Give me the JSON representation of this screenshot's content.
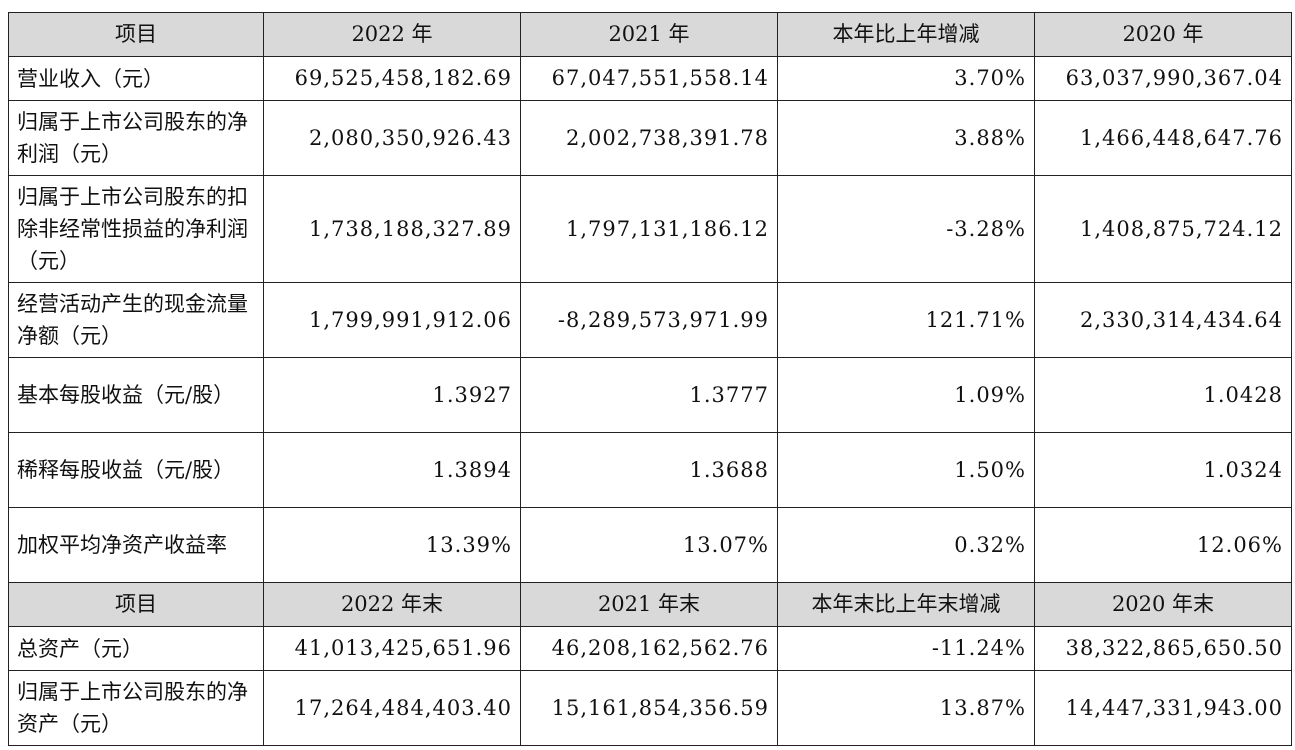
{
  "header_1": [
    "项目",
    "2022 年",
    "2021 年",
    "本年比上年增减",
    "2020 年"
  ],
  "rows_1": [
    {
      "label": "营业收入（元）",
      "v2022": "69,525,458,182.69",
      "v2021": "67,047,551,558.14",
      "change": "3.70%",
      "v2020": "63,037,990,367.04"
    },
    {
      "label": "归属于上市公司股东的净利润（元）",
      "v2022": "2,080,350,926.43",
      "v2021": "2,002,738,391.78",
      "change": "3.88%",
      "v2020": "1,466,448,647.76"
    },
    {
      "label": "归属于上市公司股东的扣除非经常性损益的净利润（元）",
      "v2022": "1,738,188,327.89",
      "v2021": "1,797,131,186.12",
      "change": "-3.28%",
      "v2020": "1,408,875,724.12"
    },
    {
      "label": "经营活动产生的现金流量净额（元）",
      "v2022": "1,799,991,912.06",
      "v2021": "-8,289,573,971.99",
      "change": "121.71%",
      "v2020": "2,330,314,434.64"
    },
    {
      "label": "基本每股收益（元/股）",
      "v2022": "1.3927",
      "v2021": "1.3777",
      "change": "1.09%",
      "v2020": "1.0428"
    },
    {
      "label": "稀释每股收益（元/股）",
      "v2022": "1.3894",
      "v2021": "1.3688",
      "change": "1.50%",
      "v2020": "1.0324"
    },
    {
      "label": "加权平均净资产收益率",
      "v2022": "13.39%",
      "v2021": "13.07%",
      "change": "0.32%",
      "v2020": "12.06%"
    }
  ],
  "header_2": [
    "项目",
    "2022 年末",
    "2021 年末",
    "本年末比上年末增减",
    "2020 年末"
  ],
  "rows_2": [
    {
      "label": "总资产（元）",
      "v2022": "41,013,425,651.96",
      "v2021": "46,208,162,562.76",
      "change": "-11.24%",
      "v2020": "38,322,865,650.50"
    },
    {
      "label": "归属于上市公司股东的净资产（元）",
      "v2022": "17,264,484,403.40",
      "v2021": "15,161,854,356.59",
      "change": "13.87%",
      "v2020": "14,447,331,943.00"
    }
  ]
}
